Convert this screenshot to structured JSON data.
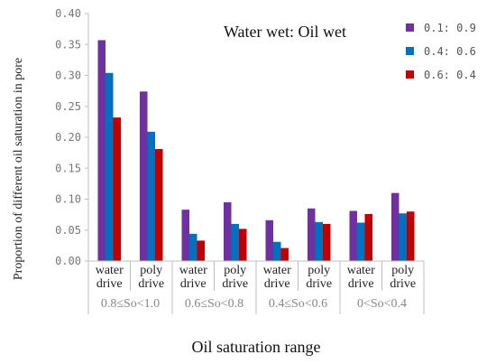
{
  "chart_data": {
    "type": "bar",
    "title": "",
    "ylabel": "Proportion of different oil saturation in pore",
    "xlabel": "Oil saturation range",
    "ylim": [
      0,
      0.4
    ],
    "yticks": [
      "0.00",
      "0.05",
      "0.10",
      "0.15",
      "0.20",
      "0.25",
      "0.30",
      "0.35",
      "0.40"
    ],
    "categories": [
      [
        "water",
        "drive"
      ],
      [
        "poly",
        "drive"
      ],
      [
        "water",
        "drive"
      ],
      [
        "poly",
        "drive"
      ],
      [
        "water",
        "drive"
      ],
      [
        "poly",
        "drive"
      ],
      [
        "water",
        "drive"
      ],
      [
        "poly",
        "drive"
      ]
    ],
    "groups": [
      "0.8≤So<1.0",
      "0.6≤So<0.8",
      "0.4≤So<0.6",
      "0<So<0.4"
    ],
    "legend_title": "Water wet: Oil wet",
    "legend_position": "top-right",
    "grid": false,
    "series": [
      {
        "name": "0.1: 0.9",
        "color": "#7030A0",
        "values": [
          0.357,
          0.274,
          0.083,
          0.095,
          0.066,
          0.085,
          0.081,
          0.11
        ]
      },
      {
        "name": "0.4: 0.6",
        "color": "#0070C0",
        "values": [
          0.304,
          0.209,
          0.044,
          0.06,
          0.031,
          0.063,
          0.062,
          0.077
        ]
      },
      {
        "name": "0.6: 0.4",
        "color": "#C00000",
        "values": [
          0.232,
          0.181,
          0.033,
          0.052,
          0.021,
          0.06,
          0.076,
          0.08
        ]
      }
    ]
  }
}
